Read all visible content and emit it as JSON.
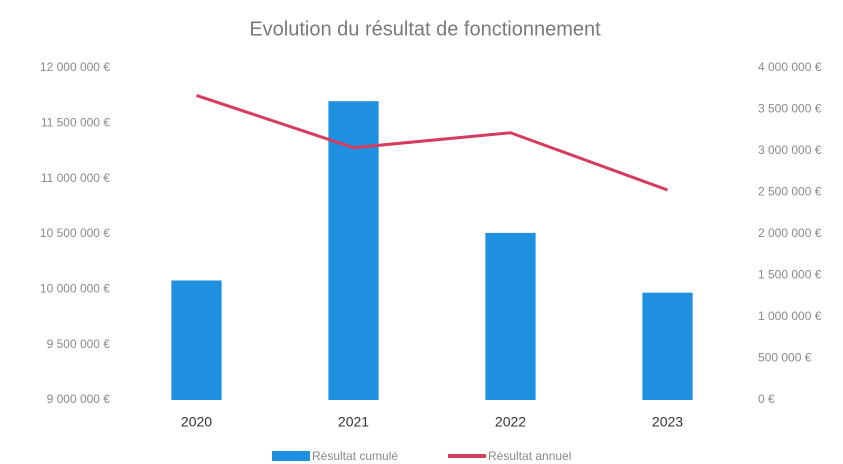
{
  "chart_data": {
    "type": "bar",
    "title": "Evolution du résultat de fonctionnement",
    "categories": [
      "2020",
      "2021",
      "2022",
      "2023"
    ],
    "series": [
      {
        "name": "Résultat cumulé",
        "type": "bar",
        "color": "#1f8fe0",
        "values": [
          10080000,
          11700000,
          10510000,
          9970000
        ]
      },
      {
        "name": "Résultat annuel",
        "type": "line",
        "axis": "y2",
        "color": "#d63c5e",
        "values": [
          3670000,
          3040000,
          3220000,
          2530000
        ]
      }
    ],
    "ylim": [
      9000000,
      12000000
    ],
    "yticks": [
      {
        "value": 9000000,
        "label": "9 000 000 €"
      },
      {
        "value": 9500000,
        "label": "9 500 000 €"
      },
      {
        "value": 10000000,
        "label": "10 000 000 €"
      },
      {
        "value": 10500000,
        "label": "10 500 000 €"
      },
      {
        "value": 11000000,
        "label": "11 000 000 €"
      },
      {
        "value": 11500000,
        "label": "11 500 000 €"
      },
      {
        "value": 12000000,
        "label": "12 000 000 €"
      }
    ],
    "y2lim": [
      0,
      4000000
    ],
    "y2ticks": [
      {
        "value": 0,
        "label": "0 €"
      },
      {
        "value": 500000,
        "label": "500 000 €"
      },
      {
        "value": 1000000,
        "label": "1 000 000 €"
      },
      {
        "value": 1500000,
        "label": "1 500 000 €"
      },
      {
        "value": 2000000,
        "label": "2 000 000 €"
      },
      {
        "value": 2500000,
        "label": "2 500 000 €"
      },
      {
        "value": 3000000,
        "label": "3 000 000 €"
      },
      {
        "value": 3500000,
        "label": "3 500 000 €"
      },
      {
        "value": 4000000,
        "label": "4 000 000 €"
      }
    ],
    "legend": "bottom"
  }
}
